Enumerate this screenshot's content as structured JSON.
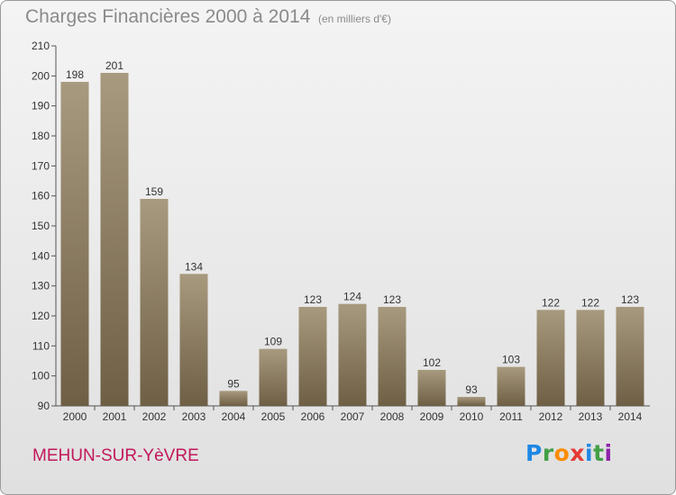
{
  "header": {
    "title": "Charges Financières 2000 à 2014",
    "unit": "(en milliers d'€)"
  },
  "footer": {
    "town": "MEHUN-SUR-YèVRE",
    "logo_letters": [
      {
        "ch": "P",
        "color": "#1e88e5"
      },
      {
        "ch": "r",
        "color": "#43a047"
      },
      {
        "ch": "o",
        "color": "#fb8c00"
      },
      {
        "ch": "x",
        "color": "#e53935"
      },
      {
        "ch": "i",
        "color": "#1e88e5"
      },
      {
        "ch": "t",
        "color": "#43a047"
      },
      {
        "ch": "i",
        "color": "#8e24aa"
      }
    ]
  },
  "chart_data": {
    "type": "bar",
    "title": "Charges Financières 2000 à 2014",
    "subtitle": "(en milliers d'€)",
    "categories": [
      "2000",
      "2001",
      "2002",
      "2003",
      "2004",
      "2005",
      "2006",
      "2007",
      "2008",
      "2009",
      "2010",
      "2011",
      "2012",
      "2013",
      "2014"
    ],
    "values": [
      198,
      201,
      159,
      134,
      95,
      109,
      123,
      124,
      123,
      102,
      93,
      103,
      122,
      122,
      123
    ],
    "ylim": [
      90,
      210
    ],
    "yticks": [
      90,
      100,
      110,
      120,
      130,
      140,
      150,
      160,
      170,
      180,
      190,
      200,
      210
    ],
    "grid": false,
    "legend": "none",
    "bar_color_top": "#a89a7e",
    "bar_color_bottom": "#6e5f45"
  }
}
